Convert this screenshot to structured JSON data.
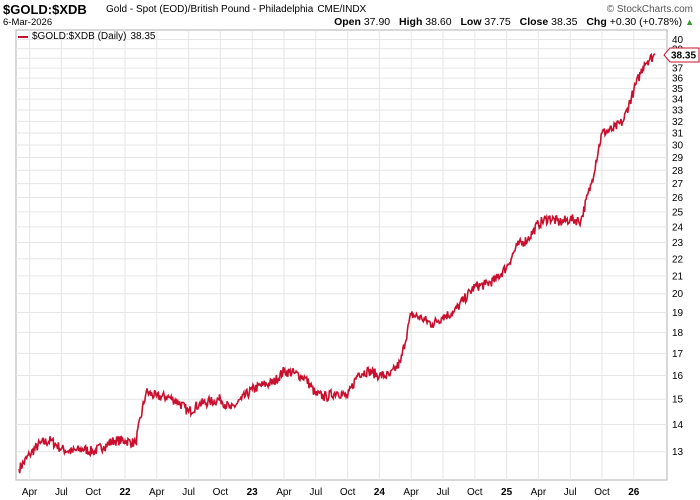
{
  "header": {
    "symbol": "$GOLD:$XDB",
    "description": "Gold - Spot (EOD)/British Pound - Philadelphia",
    "exchange": "CME/INDX",
    "brand": "© StockCharts.com",
    "date": "6-Mar-2026",
    "open_label": "Open",
    "open": "37.90",
    "high_label": "High",
    "high": "38.60",
    "low_label": "Low",
    "low": "37.75",
    "close_label": "Close",
    "close": "38.35",
    "chg_label": "Chg",
    "chg": "+0.30 (+0.78%)",
    "chg_arrow": "▲"
  },
  "legend": {
    "label": "$GOLD:$XDB (Daily)",
    "value": "38.35"
  },
  "colors": {
    "line": "#c8102e",
    "grid": "#e6e6e6",
    "price_tag_bg": "#ffffff"
  },
  "chart_data": {
    "type": "line",
    "scale": "log",
    "y_ticks": [
      "13",
      "14",
      "15",
      "16",
      "17",
      "18",
      "19",
      "20",
      "21",
      "22",
      "23",
      "24",
      "25",
      "26",
      "27",
      "28",
      "29",
      "30",
      "31",
      "32",
      "33",
      "34",
      "35",
      "36",
      "37",
      "38",
      "39",
      "40"
    ],
    "ylim": [
      12.2,
      40
    ],
    "grid": true,
    "x_tick_labels": [
      "Apr",
      "Jul",
      "Oct",
      "22",
      "Apr",
      "Jul",
      "Oct",
      "23",
      "Apr",
      "Jul",
      "Oct",
      "24",
      "Apr",
      "Jul",
      "Oct",
      "25",
      "Apr",
      "Jul",
      "Oct",
      "26"
    ],
    "x_tick_dates": [
      "2021-04",
      "2021-07",
      "2021-10",
      "2022-01",
      "2022-04",
      "2022-07",
      "2022-10",
      "2023-01",
      "2023-04",
      "2023-07",
      "2023-10",
      "2024-01",
      "2024-04",
      "2024-07",
      "2024-10",
      "2025-01",
      "2025-04",
      "2025-07",
      "2025-10",
      "2026-01"
    ],
    "last_value": 38.35,
    "series": [
      {
        "name": "$GOLD:$XDB (Daily)",
        "x": [
          "2021-03",
          "2021-04",
          "2021-05",
          "2021-06",
          "2021-07",
          "2021-08",
          "2021-09",
          "2021-10",
          "2021-11",
          "2021-12",
          "2022-01",
          "2022-02",
          "2022-03",
          "2022-04",
          "2022-05",
          "2022-06",
          "2022-07",
          "2022-08",
          "2022-09",
          "2022-10",
          "2022-11",
          "2022-12",
          "2023-01",
          "2023-02",
          "2023-03",
          "2023-04",
          "2023-05",
          "2023-06",
          "2023-07",
          "2023-08",
          "2023-09",
          "2023-10",
          "2023-11",
          "2023-12",
          "2024-01",
          "2024-02",
          "2024-03",
          "2024-04",
          "2024-05",
          "2024-06",
          "2024-07",
          "2024-08",
          "2024-09",
          "2024-10",
          "2024-11",
          "2024-12",
          "2025-01",
          "2025-02",
          "2025-03",
          "2025-04",
          "2025-05",
          "2025-06",
          "2025-07",
          "2025-08",
          "2025-09",
          "2025-10",
          "2025-11",
          "2025-12",
          "2026-01",
          "2026-02",
          "2026-03"
        ],
        "values": [
          12.4,
          12.9,
          13.3,
          13.4,
          13.1,
          13.0,
          13.1,
          13.0,
          13.2,
          13.4,
          13.4,
          13.3,
          15.3,
          15.1,
          15.1,
          14.9,
          14.5,
          14.8,
          14.9,
          15.0,
          14.6,
          15.0,
          15.4,
          15.6,
          15.7,
          16.2,
          16.1,
          15.9,
          15.2,
          15.1,
          15.3,
          15.1,
          16.1,
          16.2,
          16.0,
          16.0,
          16.6,
          18.9,
          18.7,
          18.4,
          18.8,
          19.0,
          19.7,
          20.4,
          20.5,
          20.8,
          21.5,
          22.8,
          23.2,
          24.2,
          24.6,
          24.3,
          24.5,
          24.4,
          27.0,
          31.0,
          31.3,
          32.0,
          34.8,
          37.5,
          38.35
        ]
      }
    ]
  }
}
